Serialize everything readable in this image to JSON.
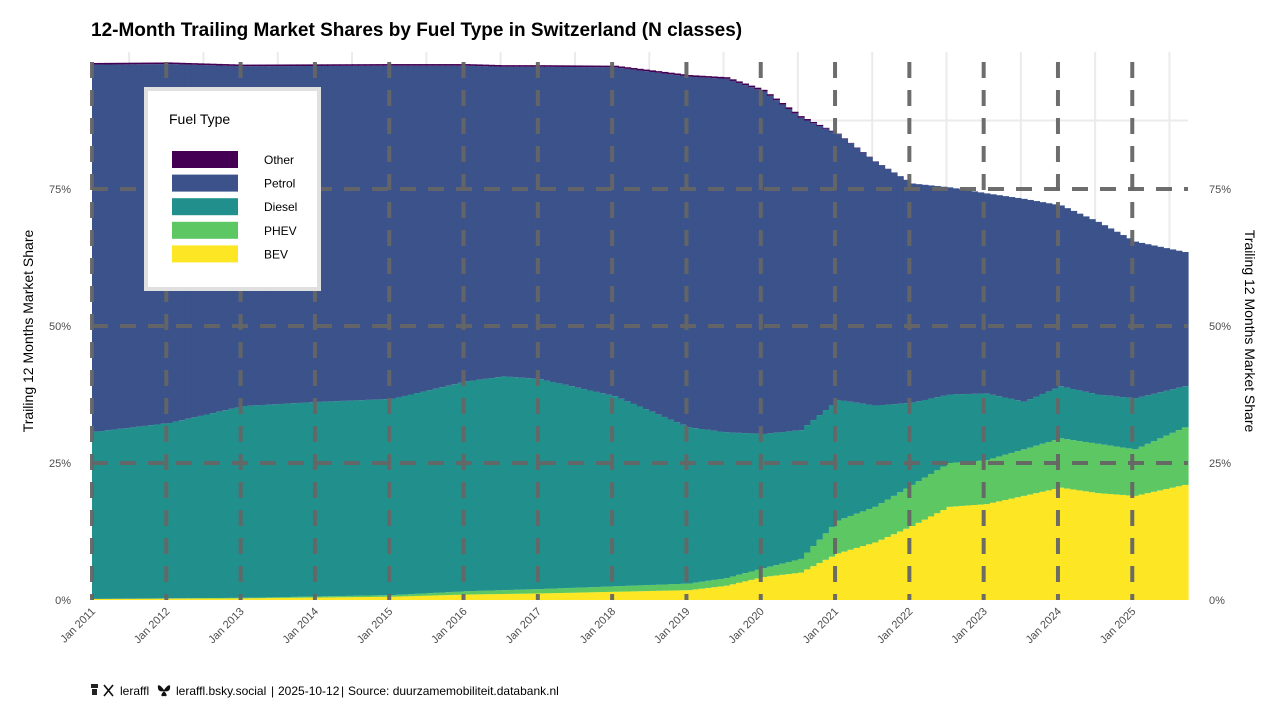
{
  "chart_data": {
    "type": "area",
    "title": "12-Month Trailing Market Shares by Fuel Type in Switzerland (N classes)",
    "ylabel": "Trailing 12 Months Market Share",
    "ylabel_right": "Trailing 12 Months Market Share",
    "y_ticks": [
      "0%",
      "25%",
      "50%",
      "75%"
    ],
    "ylim": [
      0,
      100
    ],
    "x_tick_labels": [
      "Jan 2011",
      "Jan 2012",
      "Jan 2013",
      "Jan 2014",
      "Jan 2015",
      "Jan 2016",
      "Jan 2017",
      "Jan 2018",
      "Jan 2019",
      "Jan 2020",
      "Jan 2021",
      "Jan 2022",
      "Jan 2023",
      "Jan 2024",
      "Jan 2025"
    ],
    "x_start": "2011-01",
    "x_end": "2025-09",
    "legend": {
      "title": "Fuel Type",
      "placement": "top-left"
    },
    "series_order_top_to_bottom": [
      "Other",
      "Petrol",
      "Diesel",
      "PHEV",
      "BEV"
    ],
    "colors": {
      "Other": "#440154",
      "Petrol": "#3b528b",
      "Diesel": "#21908c",
      "PHEV": "#5dc863",
      "BEV": "#fde725"
    },
    "series": [
      {
        "name": "BEV",
        "knots": [
          [
            "2011-01",
            0.2
          ],
          [
            "2013-01",
            0.3
          ],
          [
            "2015-01",
            0.6
          ],
          [
            "2016-01",
            1.0
          ],
          [
            "2017-01",
            1.2
          ],
          [
            "2018-01",
            1.5
          ],
          [
            "2019-01",
            1.8
          ],
          [
            "2019-07",
            2.6
          ],
          [
            "2020-01",
            4.2
          ],
          [
            "2020-07",
            5.0
          ],
          [
            "2021-01",
            8.5
          ],
          [
            "2021-07",
            10.5
          ],
          [
            "2022-01",
            13.5
          ],
          [
            "2022-07",
            17.0
          ],
          [
            "2023-01",
            17.5
          ],
          [
            "2023-07",
            19.0
          ],
          [
            "2024-01",
            20.5
          ],
          [
            "2024-07",
            19.5
          ],
          [
            "2025-01",
            19.0
          ],
          [
            "2025-09",
            21.0
          ]
        ]
      },
      {
        "name": "PHEV",
        "knots": [
          [
            "2011-01",
            0.0
          ],
          [
            "2013-01",
            0.1
          ],
          [
            "2015-01",
            0.3
          ],
          [
            "2016-01",
            0.6
          ],
          [
            "2017-01",
            0.8
          ],
          [
            "2018-01",
            1.0
          ],
          [
            "2019-01",
            1.2
          ],
          [
            "2019-07",
            1.4
          ],
          [
            "2020-01",
            1.6
          ],
          [
            "2020-07",
            2.5
          ],
          [
            "2021-01",
            6.0
          ],
          [
            "2021-07",
            6.5
          ],
          [
            "2022-01",
            7.5
          ],
          [
            "2022-07",
            8.0
          ],
          [
            "2023-01",
            8.0
          ],
          [
            "2023-07",
            8.5
          ],
          [
            "2024-01",
            9.0
          ],
          [
            "2024-07",
            9.0
          ],
          [
            "2025-01",
            8.5
          ],
          [
            "2025-09",
            10.5
          ]
        ]
      },
      {
        "name": "Diesel",
        "knots": [
          [
            "2011-01",
            30.5
          ],
          [
            "2012-01",
            32.0
          ],
          [
            "2013-01",
            35.0
          ],
          [
            "2014-01",
            35.5
          ],
          [
            "2015-01",
            35.8
          ],
          [
            "2016-01",
            38.3
          ],
          [
            "2016-07",
            39.0
          ],
          [
            "2017-01",
            38.3
          ],
          [
            "2018-01",
            34.7
          ],
          [
            "2019-01",
            28.5
          ],
          [
            "2019-07",
            26.6
          ],
          [
            "2020-01",
            24.5
          ],
          [
            "2020-07",
            23.5
          ],
          [
            "2021-01",
            22.0
          ],
          [
            "2021-07",
            18.5
          ],
          [
            "2022-01",
            15.0
          ],
          [
            "2022-07",
            12.5
          ],
          [
            "2023-01",
            12.2
          ],
          [
            "2023-07",
            8.7
          ],
          [
            "2024-01",
            9.5
          ],
          [
            "2024-07",
            9.0
          ],
          [
            "2025-01",
            9.3
          ],
          [
            "2025-09",
            7.5
          ]
        ]
      },
      {
        "name": "Petrol",
        "knots": [
          [
            "2011-01",
            67.0
          ],
          [
            "2012-01",
            65.5
          ],
          [
            "2013-01",
            62.0
          ],
          [
            "2014-01",
            61.3
          ],
          [
            "2015-01",
            60.8
          ],
          [
            "2016-01",
            57.6
          ],
          [
            "2016-07",
            56.5
          ],
          [
            "2017-01",
            57.0
          ],
          [
            "2018-01",
            60.0
          ],
          [
            "2018-07",
            62.0
          ],
          [
            "2019-01",
            64.0
          ],
          [
            "2019-07",
            64.5
          ],
          [
            "2020-01",
            62.5
          ],
          [
            "2020-07",
            57.0
          ],
          [
            "2021-01",
            48.5
          ],
          [
            "2021-07",
            44.5
          ],
          [
            "2022-01",
            40.0
          ],
          [
            "2022-07",
            37.8
          ],
          [
            "2023-01",
            36.5
          ],
          [
            "2023-07",
            37.0
          ],
          [
            "2024-01",
            33.0
          ],
          [
            "2024-07",
            31.5
          ],
          [
            "2025-01",
            28.6
          ],
          [
            "2025-09",
            24.5
          ]
        ]
      },
      {
        "name": "Other",
        "knots": [
          [
            "2011-01",
            0.3
          ],
          [
            "2013-01",
            0.3
          ],
          [
            "2015-01",
            0.3
          ],
          [
            "2016-01",
            0.3
          ],
          [
            "2017-01",
            0.3
          ],
          [
            "2018-01",
            0.3
          ],
          [
            "2019-01",
            0.3
          ],
          [
            "2019-07",
            0.3
          ],
          [
            "2020-01",
            0.3
          ],
          [
            "2020-07",
            0.3
          ],
          [
            "2021-01",
            0.1
          ],
          [
            "2022-01",
            0.0
          ],
          [
            "2025-09",
            0.0
          ]
        ]
      }
    ]
  },
  "caption": {
    "handle": "leraffl",
    "bluesky": "leraffl.bsky.social",
    "date": "2025-10-12",
    "source": "Source: duurzamemobiliteit.databank.nl"
  }
}
